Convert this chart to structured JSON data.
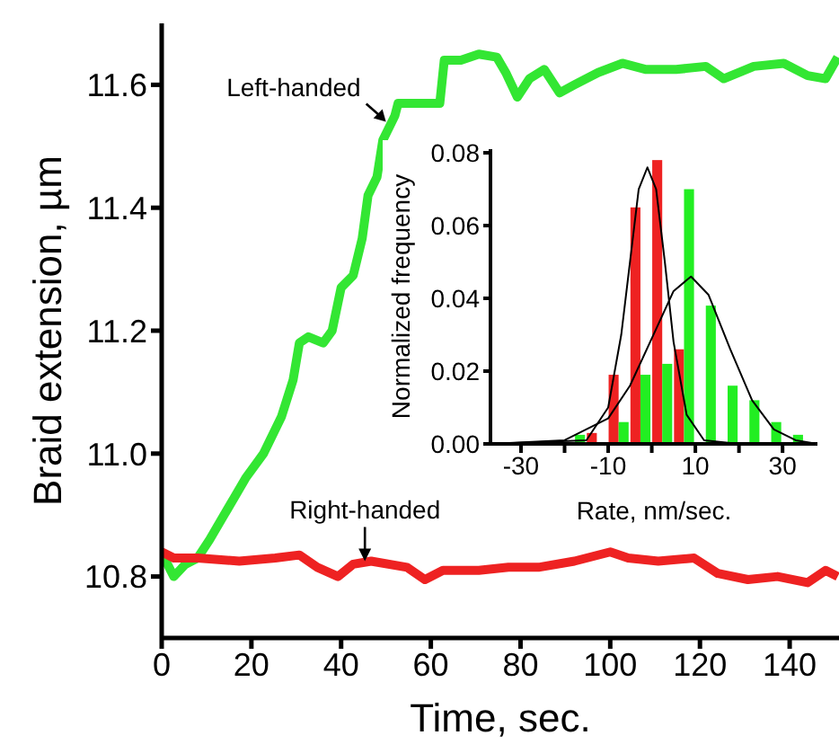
{
  "chart_data": [
    {
      "type": "line",
      "xlabel": "Time, sec.",
      "ylabel": "Braid extension, µm",
      "xlim": [
        0,
        151
      ],
      "xticks": [
        0,
        20,
        40,
        60,
        80,
        100,
        120,
        140
      ],
      "ylim": [
        10.7,
        11.7
      ],
      "yticks": [
        10.8,
        {
          "value": 11,
          "label": "11.0"
        },
        11.2,
        11.4,
        11.6
      ],
      "annotations": [
        {
          "text": "Left-handed",
          "x": 50,
          "y": 11.54
        },
        {
          "text": "Right-handed",
          "x": 45.3,
          "y": 10.825
        }
      ],
      "series": [
        {
          "color": "#33e633",
          "x": [
            0,
            1.3,
            2.7,
            5.3,
            8,
            10.7,
            14.7,
            18.7,
            22.7,
            26.7,
            29.3,
            30.7,
            32.7,
            36,
            38,
            40,
            42.7,
            44.7,
            46,
            48,
            49.3,
            52,
            52.7,
            57.3,
            62,
            63,
            66.7,
            70.7,
            74.7,
            76.7,
            79.3,
            82,
            85.3,
            88.7,
            92,
            97.3,
            102.7,
            108,
            114.7,
            121.3,
            125.3,
            132,
            138.7,
            144,
            148,
            150.7
          ],
          "values": [
            10.83,
            10.82,
            10.8,
            10.82,
            10.83,
            10.86,
            10.91,
            10.96,
            11.0,
            11.06,
            11.12,
            11.18,
            11.19,
            11.18,
            11.2,
            11.27,
            11.29,
            11.35,
            11.42,
            11.45,
            11.51,
            11.55,
            11.57,
            11.57,
            11.57,
            11.64,
            11.64,
            11.65,
            11.645,
            11.62,
            11.58,
            11.61,
            11.625,
            11.587,
            11.6,
            11.62,
            11.635,
            11.625,
            11.625,
            11.63,
            11.61,
            11.63,
            11.635,
            11.615,
            11.61,
            11.645
          ]
        },
        {
          "color": "#ee2222",
          "x": [
            0,
            2.7,
            8,
            17.3,
            25.3,
            30.7,
            34.7,
            39.3,
            42.7,
            46.7,
            54.7,
            58.7,
            62.7,
            70.7,
            77.3,
            84,
            92,
            100,
            104,
            110.7,
            118.7,
            124,
            130.7,
            137.3,
            144,
            148,
            150.7
          ],
          "values": [
            10.84,
            10.83,
            10.83,
            10.825,
            10.83,
            10.835,
            10.815,
            10.8,
            10.82,
            10.825,
            10.815,
            10.795,
            10.81,
            10.81,
            10.815,
            10.815,
            10.825,
            10.84,
            10.83,
            10.825,
            10.83,
            10.805,
            10.795,
            10.8,
            10.79,
            10.81,
            10.8
          ]
        }
      ]
    },
    {
      "type": "histogram",
      "xlabel": "Rate, nm/sec.",
      "ylabel": "Normalized frequency",
      "bins": [
        -30,
        -25,
        -20,
        -15,
        -10,
        -5,
        0,
        5,
        10,
        15,
        20,
        25,
        30,
        35
      ],
      "xlim": [
        -37,
        38
      ],
      "xticks": [
        -30,
        {
          "value": -20,
          "label": null
        },
        -10,
        {
          "value": 0,
          "label": null
        },
        10,
        {
          "value": 20,
          "label": null
        },
        30
      ],
      "ylim": [
        0,
        0.081
      ],
      "yticks": [
        {
          "value": 0,
          "label": "0.00"
        },
        {
          "value": 0.02,
          "label": "0.02"
        },
        {
          "value": 0.04,
          "label": "0.04"
        },
        {
          "value": 0.06,
          "label": "0.06"
        },
        {
          "value": 0.08,
          "label": "0.08"
        }
      ],
      "series": [
        {
          "type": "histogram",
          "color": "#ee2222",
          "values": [
            0.0005,
            0.0005,
            0,
            0.003,
            0.019,
            0.065,
            0.078,
            0.026,
            0,
            0,
            0,
            0,
            0
          ]
        },
        {
          "type": "histogram",
          "color": "#22ee22",
          "values": [
            0,
            0,
            0.0025,
            0,
            0.006,
            0.019,
            0.022,
            0.07,
            0.038,
            0.016,
            0.012,
            0.006,
            0.0025
          ]
        },
        {
          "type": "line",
          "color": "#000000",
          "x": [
            -37,
            -15,
            -10,
            -7,
            -5,
            -3,
            -1,
            1,
            3,
            5,
            8,
            12,
            20,
            38
          ],
          "values": [
            0,
            0.001,
            0.01,
            0.03,
            0.05,
            0.07,
            0.076,
            0.07,
            0.05,
            0.028,
            0.008,
            0.001,
            0,
            0
          ]
        },
        {
          "type": "line",
          "color": "#000000",
          "x": [
            -37,
            -20,
            -10,
            -5,
            0,
            5,
            9,
            13,
            18,
            23,
            28,
            33,
            38
          ],
          "values": [
            0,
            0.001,
            0.007,
            0.016,
            0.029,
            0.042,
            0.046,
            0.041,
            0.026,
            0.012,
            0.004,
            0.001,
            0
          ]
        }
      ]
    }
  ]
}
